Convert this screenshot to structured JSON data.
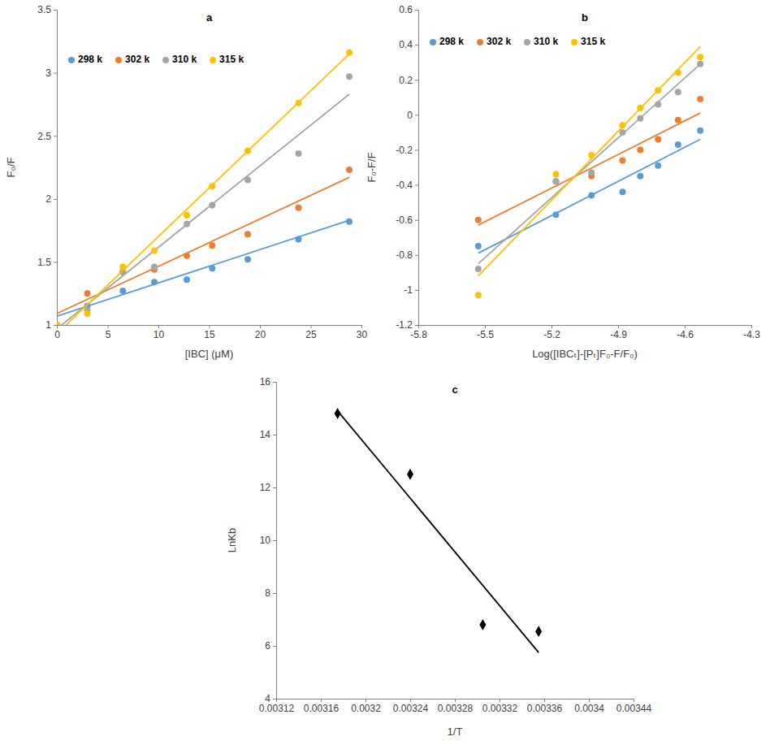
{
  "chart_data": [
    {
      "type": "scatter",
      "title": "a",
      "x_label": "[IBC] (μM)",
      "y_label": "F₀/F",
      "x": [
        0,
        3,
        6.5,
        9.6,
        12.8,
        15.3,
        18.8,
        23.8,
        28.8
      ],
      "series": [
        {
          "name": "298 k",
          "color": "#5b9bd5",
          "marker": "circle",
          "values": [
            1,
            1.15,
            1.27,
            1.34,
            1.36,
            1.45,
            1.52,
            1.68,
            1.82
          ],
          "fit": {
            "x": [
              0,
              28.8
            ],
            "values": [
              1.07,
              1.83
            ]
          }
        },
        {
          "name": "302 k",
          "color": "#ed7d31",
          "marker": "circle",
          "values": [
            1,
            1.25,
            1.42,
            1.44,
            1.55,
            1.63,
            1.72,
            1.93,
            2.23
          ],
          "fit": {
            "x": [
              0,
              28.8
            ],
            "values": [
              1.09,
              2.17
            ]
          }
        },
        {
          "name": "310 k",
          "color": "#a5a5a5",
          "marker": "circle",
          "values": [
            1,
            1.12,
            1.42,
            1.46,
            1.8,
            1.95,
            2.15,
            2.36,
            2.97
          ],
          "fit": {
            "x": [
              0,
              28.8
            ],
            "values": [
              0.97,
              2.83
            ]
          }
        },
        {
          "name": "315 k",
          "color": "#ffc000",
          "marker": "circle",
          "values": [
            1,
            1.09,
            1.46,
            1.59,
            1.87,
            2.1,
            2.38,
            2.76,
            3.16
          ],
          "fit": {
            "x": [
              0,
              28.8
            ],
            "values": [
              0.93,
              3.15
            ]
          }
        }
      ],
      "xlim": [
        0,
        30
      ],
      "ylim": [
        1,
        3.5
      ],
      "xticks": [
        0,
        5,
        10,
        15,
        20,
        25,
        30
      ],
      "yticks": [
        1,
        1.5,
        2,
        2.5,
        3,
        3.5
      ],
      "legend": "upper left"
    },
    {
      "type": "scatter",
      "title": "b",
      "x_label": "Log([IBCₜ]-[Pₜ]F₀-F/F₀)",
      "y_label": "F₀-F/F",
      "x": [
        -5.53,
        -5.18,
        -5.02,
        -4.88,
        -4.8,
        -4.72,
        -4.63,
        -4.53
      ],
      "series": [
        {
          "name": "298 k",
          "color": "#5b9bd5",
          "marker": "circle",
          "values": [
            -0.75,
            -0.57,
            -0.46,
            -0.44,
            -0.35,
            -0.29,
            -0.17,
            -0.09
          ],
          "fit": {
            "x": [
              -5.53,
              -4.53
            ],
            "values": [
              -0.79,
              -0.14
            ]
          }
        },
        {
          "name": "302 k",
          "color": "#ed7d31",
          "marker": "circle",
          "values": [
            -0.6,
            -0.38,
            -0.35,
            -0.26,
            -0.2,
            -0.14,
            -0.03,
            0.09
          ],
          "fit": {
            "x": [
              -5.53,
              -4.53
            ],
            "values": [
              -0.63,
              0.01
            ]
          }
        },
        {
          "name": "310 k",
          "color": "#a5a5a5",
          "marker": "circle",
          "values": [
            -0.88,
            -0.38,
            -0.33,
            -0.1,
            -0.02,
            0.06,
            0.13,
            0.29
          ],
          "fit": {
            "x": [
              -5.53,
              -4.53
            ],
            "values": [
              -0.85,
              0.29
            ]
          }
        },
        {
          "name": "315 k",
          "color": "#ffc000",
          "marker": "circle",
          "values": [
            -1.03,
            -0.34,
            -0.23,
            -0.06,
            0.04,
            0.14,
            0.24,
            0.33
          ],
          "fit": {
            "x": [
              -5.53,
              -4.53
            ],
            "values": [
              -0.92,
              0.39
            ]
          }
        }
      ],
      "xlim": [
        -5.8,
        -4.3
      ],
      "ylim": [
        -1.2,
        0.6
      ],
      "xticks": [
        -5.8,
        -5.5,
        -5.2,
        -4.9,
        -4.6,
        -4.3
      ],
      "yticks": [
        -1.2,
        -1,
        -0.8,
        -0.6,
        -0.4,
        -0.2,
        0,
        0.2,
        0.4,
        0.6
      ],
      "legend": "upper left"
    },
    {
      "type": "scatter",
      "title": "c",
      "x_label": "1/T",
      "y_label": "LnKb",
      "x": [
        0.003175,
        0.00324,
        0.003305,
        0.003355
      ],
      "series": [
        {
          "color": "#000000",
          "marker": "diamond",
          "values": [
            14.8,
            12.5,
            6.8,
            6.55
          ],
          "fit": {
            "x": [
              0.003175,
              0.003355
            ],
            "values": [
              14.9,
              5.75
            ]
          }
        }
      ],
      "xlim": [
        0.00312,
        0.00344
      ],
      "ylim": [
        4,
        16
      ],
      "xticks": [
        0.00312,
        0.00316,
        0.0032,
        0.00324,
        0.00328,
        0.00332,
        0.00336,
        0.0034,
        0.00344
      ],
      "yticks": [
        4,
        6,
        8,
        10,
        12,
        14,
        16
      ]
    }
  ]
}
